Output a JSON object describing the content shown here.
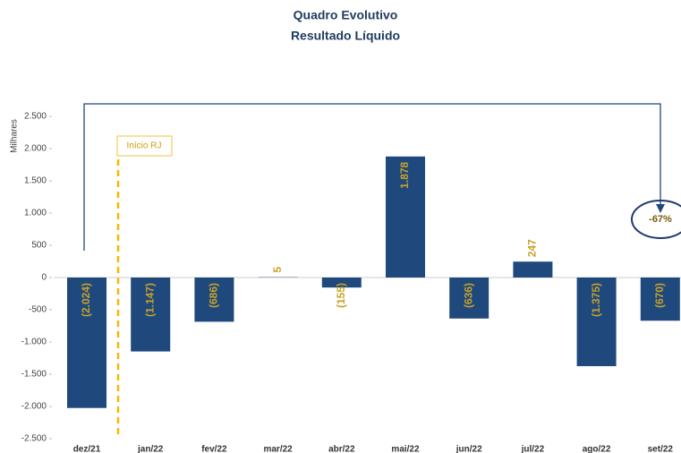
{
  "chart_data": {
    "type": "bar",
    "title": "Quadro Evolutivo",
    "subtitle": "Resultado Líquido",
    "y_label": "Milhares",
    "categories": [
      "dez/21",
      "jan/22",
      "fev/22",
      "mar/22",
      "abr/22",
      "mai/22",
      "jun/22",
      "jul/22",
      "ago/22",
      "set/22"
    ],
    "values": [
      -2024,
      -1147,
      -686,
      5,
      -155,
      1878,
      -636,
      247,
      -1375,
      -670
    ],
    "value_labels": [
      "(2.024)",
      "(1.147)",
      "(686)",
      "5",
      "(155)",
      "1.878",
      "(636)",
      "247",
      "(1.375)",
      "(670)"
    ],
    "color": "#1f497d",
    "ylim": [
      -2500,
      2500
    ],
    "yticks": [
      {
        "value": -2500,
        "label": "-2.500"
      },
      {
        "value": -2000,
        "label": "-2.000"
      },
      {
        "value": -1500,
        "label": "-1.500"
      },
      {
        "value": -1000,
        "label": "-1.000"
      },
      -500,
      0,
      500,
      {
        "value": 1000,
        "label": "1.000"
      },
      {
        "value": 1500,
        "label": "1.500"
      },
      {
        "value": 2000,
        "label": "2.000"
      },
      {
        "value": 2500,
        "label": "2.500"
      }
    ],
    "annotations": [
      "Início RJ",
      "-67%"
    ]
  }
}
